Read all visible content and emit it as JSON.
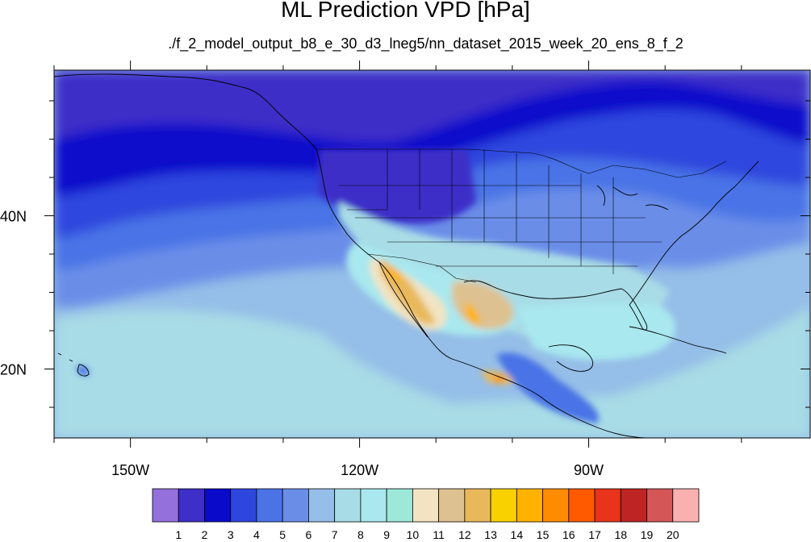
{
  "title": "ML Prediction VPD [hPa]",
  "subtitle": "./f_2_model_output_b8_e_30_d3_lneg5/nn_dataset_2015_week_20_ens_8_f_2",
  "axes": {
    "lat_ticks": [
      {
        "label": "40N",
        "value": 40
      },
      {
        "label": "20N",
        "value": 20
      }
    ],
    "lon_ticks": [
      {
        "label": "150W",
        "value": -150
      },
      {
        "label": "120W",
        "value": -120
      },
      {
        "label": "90W",
        "value": -90
      }
    ]
  },
  "colorbar": {
    "colors": [
      "#9370DB",
      "#3E2FC8",
      "#0A0ACB",
      "#2E46DE",
      "#4A73E6",
      "#6A8EE8",
      "#95BEE8",
      "#A8DCE6",
      "#A8E8EE",
      "#9EE8DA",
      "#F2E4C2",
      "#DEC190",
      "#E8B85A",
      "#F9D100",
      "#FFB300",
      "#FF8C00",
      "#FF5A00",
      "#E8341A",
      "#BE2424",
      "#D45656",
      "#FBB0B0"
    ],
    "labels": [
      "1",
      "2",
      "3",
      "4",
      "5",
      "6",
      "7",
      "8",
      "9",
      "10",
      "11",
      "12",
      "13",
      "14",
      "15",
      "16",
      "17",
      "18",
      "19",
      "20"
    ]
  },
  "chart_data": {
    "type": "heatmap",
    "title": "ML Prediction VPD [hPa]",
    "subtitle": "./f_2_model_output_b8_e_30_d3_lneg5/nn_dataset_2015_week_20_ens_8_f_2",
    "variable": "VPD",
    "units": "hPa",
    "lon_range": [
      -160,
      -61
    ],
    "lat_range": [
      11,
      59
    ],
    "contour_levels": [
      1,
      2,
      3,
      4,
      5,
      6,
      7,
      8,
      9,
      10,
      11,
      12,
      13,
      14,
      15,
      16,
      17,
      18,
      19,
      20
    ],
    "lon_ticks": [
      -150,
      -120,
      -90
    ],
    "lat_ticks": [
      20,
      40
    ],
    "highest_values_region": "US Southwest, northwest Mexico and Baja California (~14-15 hPa)",
    "lowest_values_region": "Gulf of Alaska and northern Pacific (~2-3 hPa)"
  }
}
